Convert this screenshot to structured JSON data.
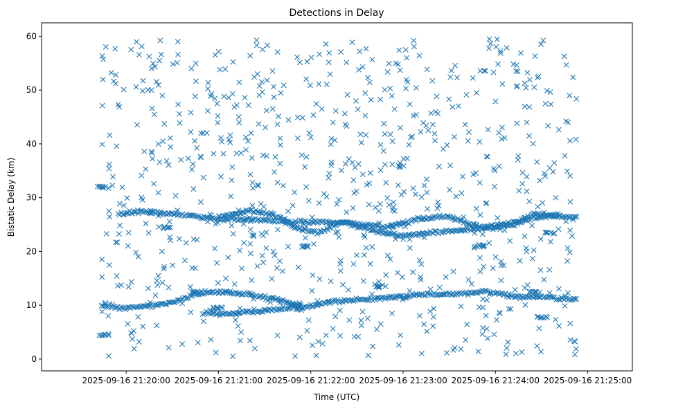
{
  "chart_data": {
    "type": "scatter",
    "title": "Detections in Delay",
    "xlabel": "Time (UTC)",
    "ylabel": "Bistatic Delay (km)",
    "marker": "x",
    "marker_color": "#1f77b4",
    "xlim_seconds": [
      -55,
      329
    ],
    "ylim": [
      -2.2,
      62.5
    ],
    "x_ticks": [
      {
        "t": 0,
        "label": "2025-09-16 21:20:00"
      },
      {
        "t": 60,
        "label": "2025-09-16 21:21:00"
      },
      {
        "t": 120,
        "label": "2025-09-16 21:22:00"
      },
      {
        "t": 180,
        "label": "2025-09-16 21:23:00"
      },
      {
        "t": 240,
        "label": "2025-09-16 21:24:00"
      },
      {
        "t": 300,
        "label": "2025-09-16 21:25:00"
      }
    ],
    "y_ticks": [
      {
        "v": 0,
        "label": "0"
      },
      {
        "v": 10,
        "label": "10"
      },
      {
        "v": 20,
        "label": "20"
      },
      {
        "v": 30,
        "label": "30"
      },
      {
        "v": 40,
        "label": "40"
      },
      {
        "v": 50,
        "label": "50"
      },
      {
        "v": 60,
        "label": "60"
      }
    ],
    "series": [
      {
        "name": "Detections",
        "x_range_seconds": [
          -16,
          293
        ],
        "tracks": [
          {
            "name": "lower-track",
            "points": [
              [
                -16,
                10.0
              ],
              [
                0,
                9.5
              ],
              [
                20,
                10.0
              ],
              [
                30,
                10.5
              ],
              [
                45,
                12.0
              ],
              [
                60,
                12.5
              ],
              [
                80,
                12.0
              ],
              [
                100,
                11.0
              ],
              [
                115,
                9.5
              ],
              [
                130,
                10.5
              ],
              [
                150,
                11.0
              ],
              [
                175,
                11.5
              ],
              [
                190,
                12.0
              ],
              [
                210,
                12.0
              ],
              [
                235,
                12.5
              ],
              [
                255,
                11.5
              ],
              [
                275,
                11.5
              ],
              [
                293,
                11.0
              ]
            ]
          },
          {
            "name": "lower-branch",
            "points": [
              [
                50,
                8.5
              ],
              [
                70,
                8.5
              ],
              [
                90,
                9.0
              ],
              [
                105,
                9.5
              ],
              [
                115,
                9.5
              ]
            ]
          },
          {
            "name": "upper-track",
            "points": [
              [
                -5,
                27.0
              ],
              [
                10,
                27.5
              ],
              [
                30,
                27.0
              ],
              [
                45,
                26.5
              ],
              [
                60,
                26.0
              ],
              [
                80,
                26.0
              ],
              [
                100,
                25.5
              ],
              [
                120,
                25.5
              ],
              [
                140,
                25.5
              ],
              [
                155,
                25.0
              ],
              [
                170,
                24.5
              ],
              [
                190,
                26.0
              ],
              [
                210,
                26.5
              ],
              [
                230,
                24.5
              ],
              [
                250,
                25.0
              ],
              [
                270,
                26.5
              ],
              [
                293,
                26.5
              ]
            ]
          },
          {
            "name": "upper-branch",
            "points": [
              [
                60,
                26.5
              ],
              [
                80,
                27.5
              ],
              [
                95,
                27.0
              ],
              [
                110,
                24.5
              ],
              [
                125,
                23.5
              ],
              [
                140,
                25.5
              ],
              [
                165,
                23.5
              ],
              [
                180,
                23.0
              ],
              [
                200,
                23.5
              ],
              [
                220,
                24.0
              ],
              [
                240,
                24.5
              ],
              [
                255,
                25.5
              ],
              [
                265,
                27.0
              ],
              [
                280,
                26.5
              ]
            ]
          },
          {
            "name": "minor-tracks",
            "points": [
              [
                -15,
                32.0
              ],
              [
                -15,
                4.5
              ],
              [
                25,
                24.5
              ],
              [
                45,
                12.5
              ],
              [
                60,
                9.5
              ],
              [
                110,
                10.0
              ],
              [
                115,
                21.0
              ],
              [
                165,
                13.5
              ],
              [
                230,
                21.0
              ],
              [
                265,
                12.5
              ],
              [
                270,
                7.8
              ],
              [
                275,
                23.5
              ]
            ]
          }
        ],
        "scatter_count": 780,
        "scatter_y_range": [
          0.5,
          59.8
        ]
      }
    ]
  }
}
